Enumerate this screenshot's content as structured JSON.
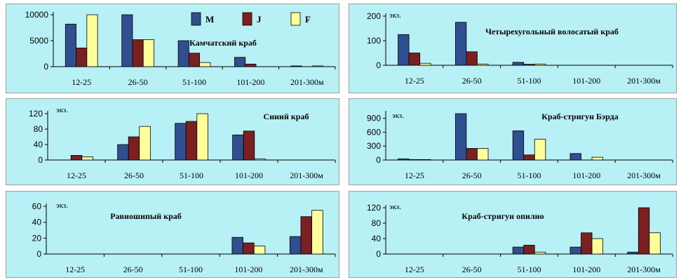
{
  "style": {
    "panel_bg": "#b7f1f5",
    "panel_border": "#a0a0a0",
    "axis_color": "#000000",
    "series_colors": [
      "#2f4f8f",
      "#7a2020",
      "#ffff99"
    ],
    "series_stroke": "#000000"
  },
  "legend": {
    "placement": "top-right of first panel",
    "items": [
      {
        "label": "M",
        "color": "#2f4f8f"
      },
      {
        "label": "J",
        "color": "#7a2020"
      },
      {
        "label": "F",
        "color": "#ffff99"
      }
    ]
  },
  "chart_data": [
    {
      "type": "bar",
      "title": "Камчатский краб",
      "unit_label": "",
      "categories": [
        "12-25",
        "26-50",
        "51-100",
        "101-200",
        "201-300м"
      ],
      "yticks": [
        "0",
        "5000",
        "10000"
      ],
      "ylim": [
        0,
        10000
      ],
      "series": [
        {
          "name": "M",
          "values": [
            8200,
            10200,
            5000,
            1800,
            150
          ]
        },
        {
          "name": "J",
          "values": [
            3600,
            5200,
            2600,
            500,
            0
          ]
        },
        {
          "name": "F",
          "values": [
            10000,
            5200,
            800,
            0,
            150
          ]
        }
      ]
    },
    {
      "type": "bar",
      "title": "Четырехугольный волосатый краб",
      "unit_label": "экз.",
      "categories": [
        "12-25",
        "26-50",
        "51-100",
        "101-200",
        "201-300м"
      ],
      "yticks": [
        "0",
        "100",
        "200"
      ],
      "ylim": [
        0,
        200
      ],
      "series": [
        {
          "name": "M",
          "values": [
            125,
            175,
            12,
            0,
            0
          ]
        },
        {
          "name": "J",
          "values": [
            50,
            55,
            4,
            0,
            0
          ]
        },
        {
          "name": "F",
          "values": [
            8,
            5,
            5,
            0,
            0
          ]
        }
      ]
    },
    {
      "type": "bar",
      "title": "Синий краб",
      "unit_label": "экз.",
      "categories": [
        "12-25",
        "26-50",
        "51-100",
        "101-200",
        "201-300м"
      ],
      "yticks": [
        "0",
        "40",
        "80",
        "120"
      ],
      "ylim": [
        0,
        120
      ],
      "series": [
        {
          "name": "M",
          "values": [
            0,
            40,
            95,
            65,
            0
          ]
        },
        {
          "name": "J",
          "values": [
            12,
            60,
            100,
            75,
            0
          ]
        },
        {
          "name": "F",
          "values": [
            8,
            87,
            120,
            3,
            0
          ]
        }
      ]
    },
    {
      "type": "bar",
      "title": "Краб-стригун Бэрда",
      "unit_label": "экз.",
      "categories": [
        "12-25",
        "26-50",
        "51-100",
        "101-200",
        "201-300м"
      ],
      "yticks": [
        "0",
        "300",
        "600",
        "900"
      ],
      "ylim": [
        0,
        1000
      ],
      "series": [
        {
          "name": "M",
          "values": [
            25,
            1000,
            630,
            140,
            0
          ]
        },
        {
          "name": "J",
          "values": [
            10,
            250,
            110,
            0,
            0
          ]
        },
        {
          "name": "F",
          "values": [
            10,
            250,
            450,
            60,
            0
          ]
        }
      ]
    },
    {
      "type": "bar",
      "title": "Равношипый краб",
      "unit_label": "экз.",
      "categories": [
        "12-25",
        "26-50",
        "51-100",
        "101-200",
        "201-300м"
      ],
      "yticks": [
        "0",
        "20",
        "40",
        "60"
      ],
      "ylim": [
        0,
        60
      ],
      "series": [
        {
          "name": "M",
          "values": [
            0,
            0,
            0,
            21,
            22
          ]
        },
        {
          "name": "J",
          "values": [
            0,
            0,
            0,
            14,
            47
          ]
        },
        {
          "name": "F",
          "values": [
            0,
            0,
            0,
            10,
            55
          ]
        }
      ]
    },
    {
      "type": "bar",
      "title": "Краб-стригун опилио",
      "unit_label": "экз.",
      "categories": [
        "12-25",
        "26-50",
        "51-100",
        "101-200",
        "201-300м"
      ],
      "yticks": [
        "0",
        "40",
        "80",
        "120"
      ],
      "ylim": [
        0,
        120
      ],
      "series": [
        {
          "name": "M",
          "values": [
            0,
            0,
            18,
            18,
            5
          ]
        },
        {
          "name": "J",
          "values": [
            0,
            0,
            23,
            55,
            123
          ]
        },
        {
          "name": "F",
          "values": [
            0,
            0,
            5,
            40,
            55
          ]
        }
      ]
    }
  ]
}
